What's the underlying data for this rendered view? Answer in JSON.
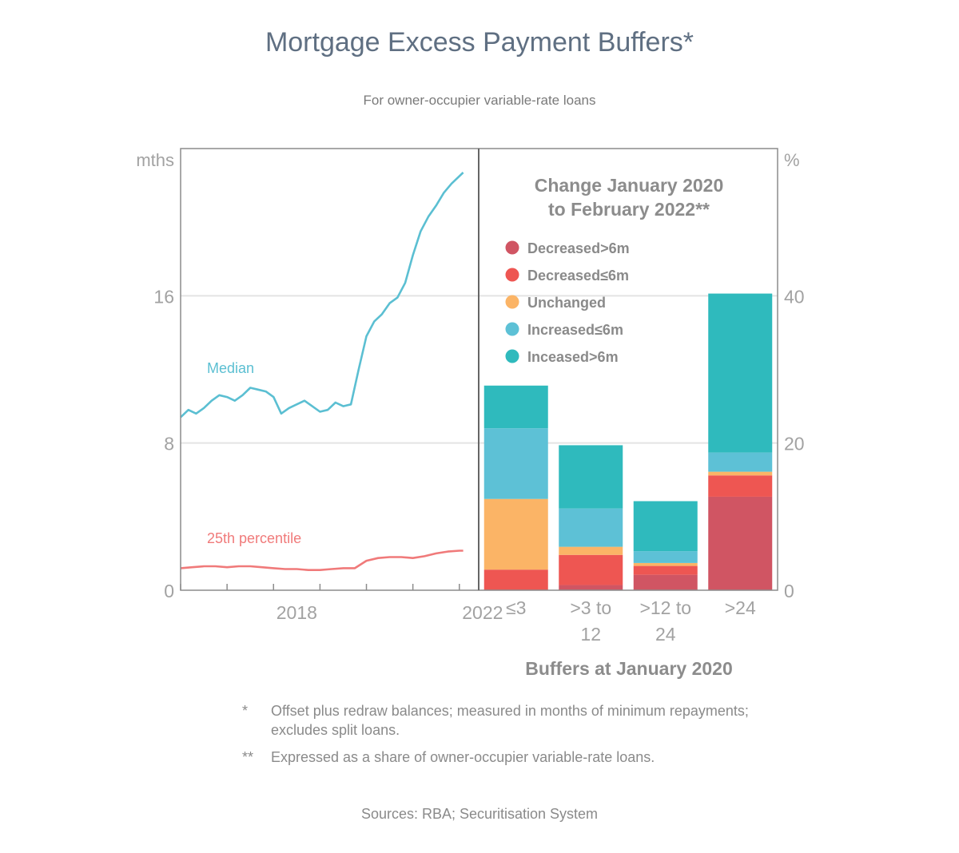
{
  "title": "Mortgage Excess Payment Buffers*",
  "subtitle": "For owner-occupier variable-rate loans",
  "notes": [
    {
      "mark": "*",
      "text": "Offset plus redraw balances; measured in months of minimum repayments; excludes split loans."
    },
    {
      "mark": "**",
      "text": "Expressed as a share of owner-occupier variable-rate loans."
    }
  ],
  "sources": "Sources: RBA; Securitisation System",
  "colors": {
    "median": "#5bbfd2",
    "p25": "#f07a7a",
    "decreased_gt6": "#d05563",
    "decreased_le6": "#ee5652",
    "unchanged": "#fbb466",
    "increased_le6": "#5dc1d6",
    "increased_gt6": "#2fbabd"
  },
  "chart_data": [
    {
      "type": "line",
      "ylabel": "mths",
      "ylim": [
        0,
        24
      ],
      "yticks": [
        0,
        8,
        16
      ],
      "xlim": [
        "2016-01",
        "2022-06"
      ],
      "xticklabels": [
        {
          "label": "2018"
        },
        {
          "label": "2022"
        }
      ],
      "grid": true,
      "series": [
        {
          "name": "Median",
          "x": [
            "2016-01",
            "2016-03",
            "2016-05",
            "2016-07",
            "2016-09",
            "2016-11",
            "2017-01",
            "2017-03",
            "2017-05",
            "2017-07",
            "2017-09",
            "2017-11",
            "2018-01",
            "2018-03",
            "2018-05",
            "2018-07",
            "2018-09",
            "2018-11",
            "2019-01",
            "2019-03",
            "2019-05",
            "2019-07",
            "2019-09",
            "2019-11",
            "2020-01",
            "2020-03",
            "2020-05",
            "2020-07",
            "2020-09",
            "2020-11",
            "2021-01",
            "2021-03",
            "2021-05",
            "2021-07",
            "2021-09",
            "2021-11",
            "2022-01",
            "2022-02"
          ],
          "values": [
            9.4,
            9.8,
            9.6,
            9.9,
            10.3,
            10.6,
            10.5,
            10.3,
            10.6,
            11.0,
            10.9,
            10.8,
            10.5,
            9.6,
            9.9,
            10.1,
            10.3,
            10.0,
            9.7,
            9.8,
            10.2,
            10.0,
            10.1,
            12.0,
            13.8,
            14.6,
            15.0,
            15.6,
            15.9,
            16.7,
            18.2,
            19.5,
            20.3,
            20.9,
            21.6,
            22.1,
            22.5,
            22.7
          ]
        },
        {
          "name": "25th percentile",
          "x": [
            "2016-01",
            "2016-04",
            "2016-07",
            "2016-10",
            "2017-01",
            "2017-04",
            "2017-07",
            "2017-10",
            "2018-01",
            "2018-04",
            "2018-07",
            "2018-10",
            "2019-01",
            "2019-04",
            "2019-07",
            "2019-10",
            "2020-01",
            "2020-04",
            "2020-07",
            "2020-10",
            "2021-01",
            "2021-04",
            "2021-07",
            "2021-10",
            "2022-01",
            "2022-02"
          ],
          "values": [
            1.2,
            1.25,
            1.3,
            1.3,
            1.25,
            1.3,
            1.3,
            1.25,
            1.2,
            1.15,
            1.15,
            1.1,
            1.1,
            1.15,
            1.2,
            1.2,
            1.6,
            1.75,
            1.8,
            1.8,
            1.75,
            1.85,
            2.0,
            2.1,
            2.15,
            2.15
          ]
        }
      ]
    },
    {
      "type": "bar",
      "stacked": true,
      "title": "Change January 2020 to February 2022**",
      "title_lines": [
        "Change January 2020",
        "to February 2022**"
      ],
      "xlabel": "Buffers at January 2020",
      "ylabel": "%",
      "ylim": [
        0,
        60
      ],
      "yticks": [
        0,
        20,
        40
      ],
      "categories": [
        "≤3",
        ">3 to 12",
        ">12 to 24",
        ">24"
      ],
      "category_lines": [
        [
          "≤3"
        ],
        [
          ">3 to",
          "12"
        ],
        [
          ">12 to",
          "24"
        ],
        [
          ">24"
        ]
      ],
      "legend": "top",
      "series": [
        {
          "name": "Decreased>6m",
          "key": "decreased_gt6",
          "values": [
            0,
            0.7,
            2.1,
            12.7
          ]
        },
        {
          "name": "Decreased≤6m",
          "key": "decreased_le6",
          "values": [
            2.8,
            4.1,
            1.2,
            2.9
          ]
        },
        {
          "name": "Unchanged",
          "key": "unchanged",
          "values": [
            9.6,
            1.1,
            0.4,
            0.5
          ]
        },
        {
          "name": "Increased≤6m",
          "key": "increased_le6",
          "values": [
            9.6,
            5.2,
            1.6,
            2.6
          ]
        },
        {
          "name": "Inceased>6m",
          "key": "increased_gt6",
          "values": [
            5.8,
            8.6,
            6.8,
            21.6
          ]
        }
      ]
    }
  ]
}
